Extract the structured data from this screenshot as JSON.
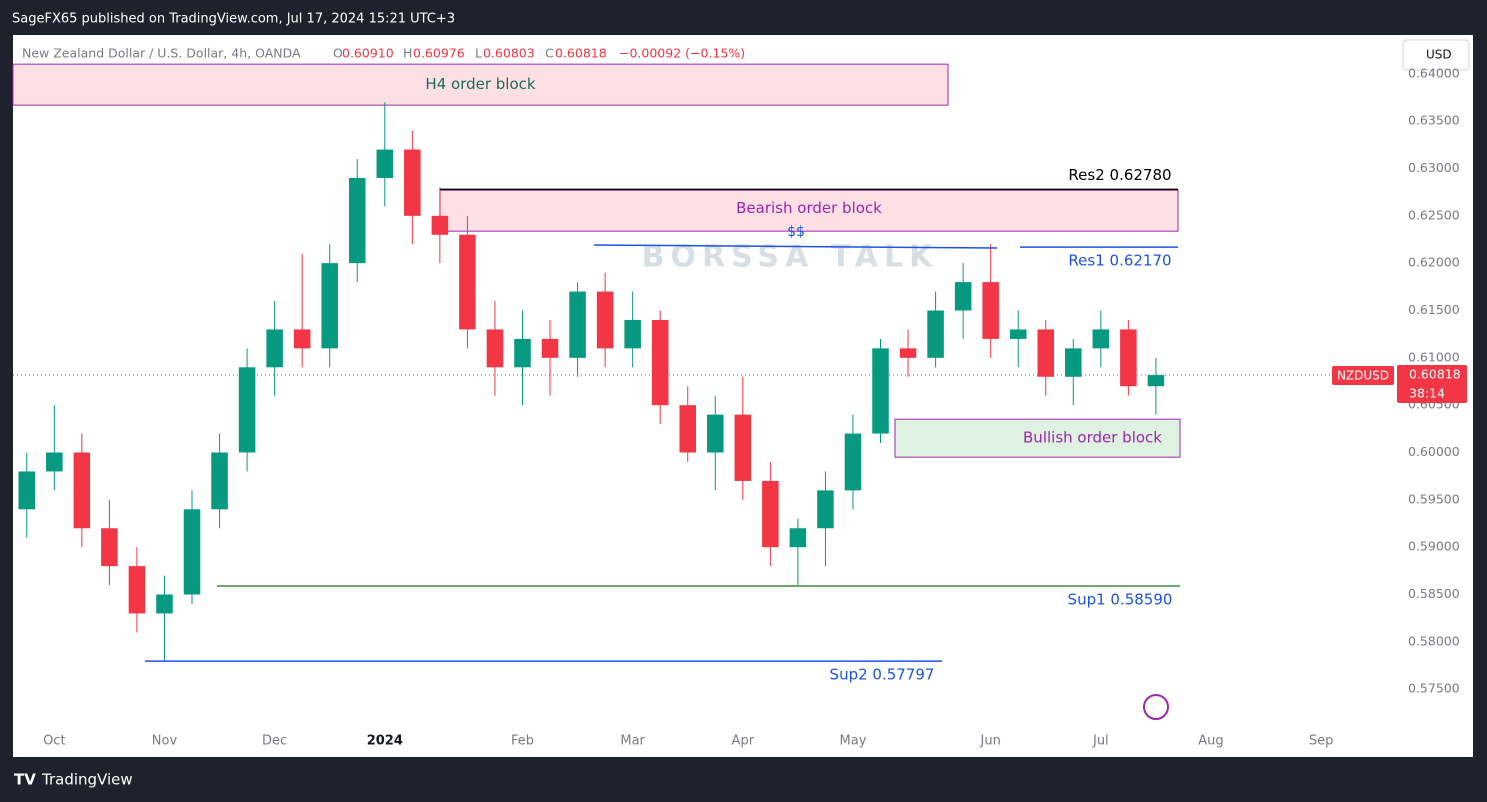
{
  "header": {
    "publisher": "SageFX65 published on TradingView.com, Jul 17, 2024 15:21 UTC+3",
    "symbol_desc": "New Zealand Dollar / U.S. Dollar, 4h, OANDA",
    "o_label": "O",
    "o": "0.60910",
    "h_label": "H",
    "h": "0.60976",
    "l_label": "L",
    "l": "0.60803",
    "c_label": "C",
    "c": "0.60818",
    "change": "−0.00092 (−0.15%)",
    "currency": "USD"
  },
  "price_tag": {
    "symbol": "NZDUSD",
    "price": "0.60818",
    "countdown": "38:14"
  },
  "watermark": "BORSSA TALK",
  "footer": "TradingView",
  "chart_data": {
    "type": "candlestick",
    "up_color": "#089981",
    "down_color": "#f23645",
    "categories": [
      null,
      "Oct",
      null,
      null,
      null,
      "Nov",
      null,
      null,
      null,
      "Dec",
      null,
      null,
      null,
      "2024",
      null,
      null,
      null,
      null,
      "Feb",
      null,
      null,
      null,
      "Mar",
      null,
      null,
      null,
      "Apr",
      null,
      null,
      null,
      "May",
      null,
      null,
      null,
      null,
      "Jun",
      null,
      null,
      null,
      "Jul",
      null,
      null,
      null,
      "Aug",
      null,
      null,
      null,
      "Sep",
      null,
      null
    ],
    "values": [
      [
        0.594,
        0.6,
        0.591,
        0.598
      ],
      [
        0.598,
        0.605,
        0.596,
        0.6
      ],
      [
        0.6,
        0.602,
        0.59,
        0.592
      ],
      [
        0.592,
        0.595,
        0.586,
        0.588
      ],
      [
        0.588,
        0.59,
        0.581,
        0.583
      ],
      [
        0.583,
        0.587,
        0.578,
        0.585
      ],
      [
        0.585,
        0.596,
        0.584,
        0.594
      ],
      [
        0.594,
        0.602,
        0.592,
        0.6
      ],
      [
        0.6,
        0.611,
        0.598,
        0.609
      ],
      [
        0.609,
        0.616,
        0.606,
        0.613
      ],
      [
        0.613,
        0.621,
        0.609,
        0.611
      ],
      [
        0.611,
        0.622,
        0.609,
        0.62
      ],
      [
        0.62,
        0.631,
        0.618,
        0.629
      ],
      [
        0.629,
        0.637,
        0.626,
        0.632
      ],
      [
        0.632,
        0.634,
        0.622,
        0.625
      ],
      [
        0.625,
        0.628,
        0.62,
        0.623
      ],
      [
        0.623,
        0.625,
        0.611,
        0.613
      ],
      [
        0.613,
        0.616,
        0.606,
        0.609
      ],
      [
        0.609,
        0.615,
        0.605,
        0.612
      ],
      [
        0.612,
        0.614,
        0.606,
        0.61
      ],
      [
        0.61,
        0.618,
        0.608,
        0.617
      ],
      [
        0.617,
        0.619,
        0.609,
        0.611
      ],
      [
        0.611,
        0.617,
        0.609,
        0.614
      ],
      [
        0.614,
        0.615,
        0.603,
        0.605
      ],
      [
        0.605,
        0.607,
        0.599,
        0.6
      ],
      [
        0.6,
        0.606,
        0.596,
        0.604
      ],
      [
        0.604,
        0.608,
        0.595,
        0.597
      ],
      [
        0.597,
        0.599,
        0.588,
        0.59
      ],
      [
        0.59,
        0.593,
        0.586,
        0.592
      ],
      [
        0.592,
        0.598,
        0.588,
        0.596
      ],
      [
        0.596,
        0.604,
        0.594,
        0.602
      ],
      [
        0.602,
        0.612,
        0.601,
        0.611
      ],
      [
        0.611,
        0.613,
        0.608,
        0.61
      ],
      [
        0.61,
        0.617,
        0.609,
        0.615
      ],
      [
        0.615,
        0.62,
        0.612,
        0.618
      ],
      [
        0.618,
        0.622,
        0.61,
        0.612
      ],
      [
        0.612,
        0.615,
        0.609,
        0.613
      ],
      [
        0.613,
        0.614,
        0.606,
        0.608
      ],
      [
        0.608,
        0.612,
        0.605,
        0.611
      ],
      [
        0.611,
        0.615,
        0.609,
        0.613
      ],
      [
        0.613,
        0.614,
        0.606,
        0.607
      ],
      [
        0.607,
        0.61,
        0.604,
        0.60818
      ],
      null,
      null,
      null,
      null,
      null,
      null,
      null,
      null
    ],
    "ylim": [
      0.5709,
      0.6441
    ],
    "yticks": [
      {
        "value": 0.575,
        "label": "0.57500"
      },
      {
        "value": 0.58,
        "label": "0.58000"
      },
      {
        "value": 0.585,
        "label": "0.58500"
      },
      {
        "value": 0.59,
        "label": "0.59000"
      },
      {
        "value": 0.595,
        "label": "0.59500"
      },
      {
        "value": 0.6,
        "label": "0.60000"
      },
      {
        "value": 0.605,
        "label": "0.60500"
      },
      {
        "value": 0.61,
        "label": "0.61000"
      },
      {
        "value": 0.615,
        "label": "0.61500"
      },
      {
        "value": 0.62,
        "label": "0.62000"
      },
      {
        "value": 0.625,
        "label": "0.62500"
      },
      {
        "value": 0.63,
        "label": "0.63000"
      },
      {
        "value": 0.635,
        "label": "0.63500"
      },
      {
        "value": 0.64,
        "label": "0.64000"
      }
    ],
    "zones": [
      {
        "label": "H4 order block",
        "top": 0.64102,
        "bottom": 0.63669
      },
      {
        "label": "Bearish order block",
        "top": 0.62771,
        "bottom": 0.62338
      },
      {
        "label": "Bullish order block",
        "top": 0.60352,
        "bottom": 0.59951
      }
    ],
    "levels": [
      {
        "label": "Res2 0.62780",
        "value": 0.6278,
        "color": "#000000"
      },
      {
        "label": "Res1 0.62170",
        "value": 0.6217,
        "color": "#1e53e5"
      },
      {
        "label": "Sup1 0.58590",
        "value": 0.5859,
        "color": "#388e3c"
      },
      {
        "label": "Sup2  0.57797",
        "value": 0.57797,
        "color": "#1e53e5"
      }
    ],
    "liquidity_label": "$$"
  }
}
